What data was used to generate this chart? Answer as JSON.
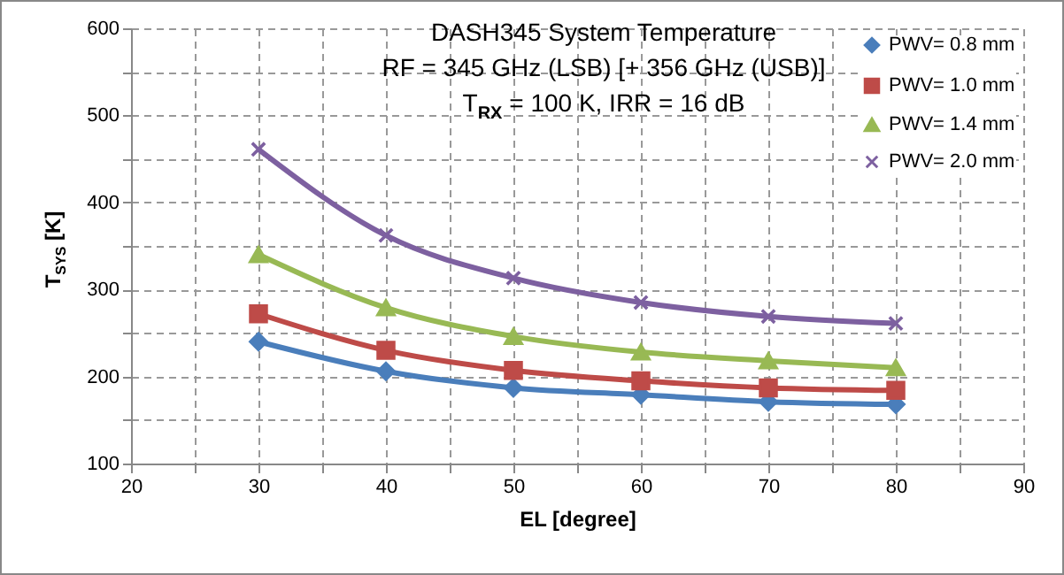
{
  "chart_data": {
    "type": "line",
    "title": "DASH345 System Temperature",
    "subtitle": "RF = 345 GHz (LSB) [+ 356 GHz (USB)]",
    "annotations": [
      "T$_{RX}$ = 100 K, IRR = 16 dB"
    ],
    "xlabel": "EL [degree]",
    "ylabel": "T$_{SYS}$ [K]",
    "x": [
      30,
      40,
      50,
      60,
      70,
      80
    ],
    "series": [
      {
        "name": "PWV= 0.8 mm",
        "color": "#4a7ebb",
        "marker": "diamond",
        "values": [
          240,
          206,
          187,
          179,
          171,
          168
        ]
      },
      {
        "name": "PWV= 1.0 mm",
        "color": "#be4b48",
        "marker": "square",
        "values": [
          272,
          230,
          207,
          195,
          187,
          184
        ]
      },
      {
        "name": "PWV= 1.4 mm",
        "color": "#98b954",
        "marker": "triangle",
        "values": [
          340,
          279,
          246,
          228,
          218,
          210
        ]
      },
      {
        "name": "PWV= 2.0 mm",
        "color": "#7d60a0",
        "marker": "cross",
        "values": [
          461,
          362,
          313,
          285,
          269,
          261
        ]
      }
    ],
    "xlim": [
      20,
      90
    ],
    "xticks": [
      20,
      {
        "value": 25,
        "label": null
      },
      30,
      {
        "value": 35,
        "label": null
      },
      40,
      {
        "value": 45,
        "label": null
      },
      50,
      {
        "value": 55,
        "label": null
      },
      60,
      {
        "value": 65,
        "label": null
      },
      70,
      {
        "value": 75,
        "label": null
      },
      80,
      {
        "value": 85,
        "label": null
      },
      90
    ],
    "ylim": [
      100,
      600
    ],
    "yticks": [
      100,
      {
        "value": 150,
        "label": null
      },
      200,
      {
        "value": 250,
        "label": null
      },
      300,
      {
        "value": 350,
        "label": null
      },
      400,
      {
        "value": 450,
        "label": null
      },
      500,
      {
        "value": 550,
        "label": null
      },
      600
    ],
    "grid": true,
    "legend": "top right",
    "line_style": "solid"
  }
}
